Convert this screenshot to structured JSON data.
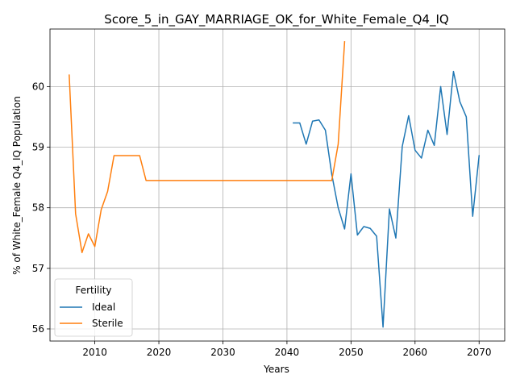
{
  "chart_data": {
    "type": "line",
    "title": "Score_5_in_GAY_MARRIAGE_OK_for_White_Female_Q4_IQ",
    "xlabel": "Years",
    "ylabel": "% of White_Female Q4_IQ Population",
    "xlim": [
      2003,
      2074
    ],
    "ylim": [
      55.8,
      60.95
    ],
    "xticks": [
      2010,
      2020,
      2030,
      2040,
      2050,
      2060,
      2070
    ],
    "yticks": [
      56,
      57,
      58,
      59,
      60
    ],
    "grid": true,
    "legend": {
      "title": "Fertility",
      "placement": "lower-left"
    },
    "series": [
      {
        "name": "Ideal",
        "color": "#1f77b4",
        "x": [
          2041,
          2042,
          2043,
          2044,
          2045,
          2046,
          2047,
          2048,
          2049,
          2050,
          2051,
          2052,
          2053,
          2054,
          2055,
          2056,
          2057,
          2058,
          2059,
          2060,
          2061,
          2062,
          2063,
          2064,
          2065,
          2066,
          2067,
          2068,
          2069,
          2070
        ],
        "values": [
          59.4,
          59.4,
          59.05,
          59.43,
          59.45,
          59.28,
          58.55,
          58.0,
          57.65,
          58.56,
          57.55,
          57.69,
          57.66,
          57.53,
          56.03,
          57.98,
          57.5,
          59.01,
          59.52,
          58.95,
          58.82,
          59.28,
          59.03,
          60.0,
          59.21,
          60.25,
          59.75,
          59.5,
          57.86,
          58.86
        ]
      },
      {
        "name": "Sterile",
        "color": "#ff7f0e",
        "x": [
          2006,
          2007,
          2008,
          2009,
          2010,
          2011,
          2012,
          2013,
          2014,
          2015,
          2016,
          2017,
          2018,
          2019,
          2020,
          2025,
          2030,
          2035,
          2040,
          2045,
          2046,
          2047,
          2048,
          2049
        ],
        "values": [
          60.19,
          57.9,
          57.26,
          57.57,
          57.36,
          57.97,
          58.27,
          58.86,
          58.86,
          58.86,
          58.86,
          58.86,
          58.45,
          58.45,
          58.45,
          58.45,
          58.45,
          58.45,
          58.45,
          58.45,
          58.45,
          58.45,
          59.05,
          60.74
        ]
      }
    ]
  }
}
